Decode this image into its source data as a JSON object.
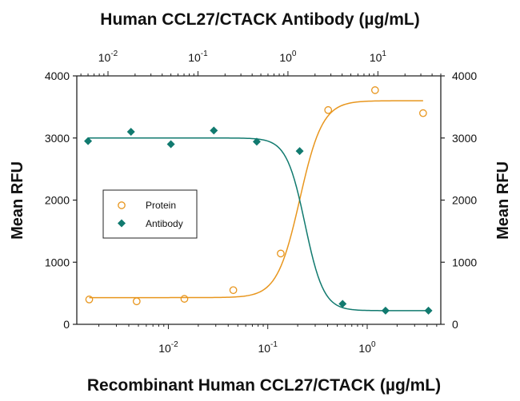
{
  "chart_data": {
    "type": "scatter",
    "top_title": "Human CCL27/CTACK Antibody (µg/mL)",
    "bottom_title": "Recombinant Human CCL27/CTACK (µg/mL)",
    "ylabel_left": "Mean RFU",
    "ylabel_right": "Mean RFU",
    "y_ticks": [
      "0",
      "1000",
      "2000",
      "3000",
      "4000"
    ],
    "y_tick_values": [
      0,
      1000,
      2000,
      3000,
      4000
    ],
    "ylim": [
      0,
      4000
    ],
    "bottom_axis": {
      "scale": "log",
      "range": [
        0.0012,
        5.5
      ],
      "tick_labels": [
        {
          "value": 0.01,
          "base": "10",
          "exp": "-2"
        },
        {
          "value": 0.1,
          "base": "10",
          "exp": "-1"
        },
        {
          "value": 1,
          "base": "10",
          "exp": "0"
        }
      ]
    },
    "top_axis": {
      "scale": "log",
      "range": [
        0.0045,
        50
      ],
      "tick_labels": [
        {
          "value": 0.01,
          "base": "10",
          "exp": "-2"
        },
        {
          "value": 0.1,
          "base": "10",
          "exp": "-1"
        },
        {
          "value": 1,
          "base": "10",
          "exp": "0"
        },
        {
          "value": 10,
          "base": "10",
          "exp": "1"
        }
      ]
    },
    "legend_position": "left-middle",
    "grid": false,
    "series": [
      {
        "name": "Protein",
        "axis": "bottom",
        "marker": "open-circle",
        "color": "#E8961E",
        "x": [
          0.0016,
          0.0048,
          0.0145,
          0.045,
          0.135,
          0.405,
          1.2,
          3.65
        ],
        "y": [
          400,
          370,
          410,
          550,
          1140,
          3450,
          3770,
          3400
        ],
        "fit": {
          "bottom": 430,
          "top": 3600,
          "ec50": 0.21,
          "hill": 3.8
        }
      },
      {
        "name": "Antibody",
        "axis": "top",
        "marker": "filled-diamond",
        "color": "#117A6F",
        "x": [
          0.006,
          0.018,
          0.05,
          0.15,
          0.45,
          1.35,
          4.05,
          12.15,
          36.45
        ],
        "y": [
          2950,
          3100,
          2900,
          3120,
          2940,
          2790,
          330,
          220,
          220
        ],
        "fit": {
          "bottom": 220,
          "top": 3000,
          "ec50": 1.55,
          "hill": 4.2
        }
      }
    ]
  },
  "colors": {
    "protein": "#E8961E",
    "antibody": "#117A6F",
    "axis": "#222222"
  }
}
